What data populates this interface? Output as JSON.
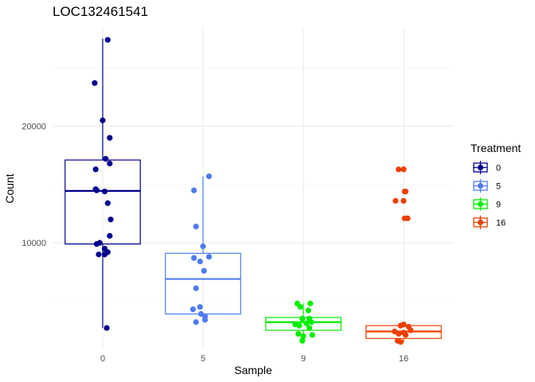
{
  "chart_data": {
    "type": "box",
    "title": "LOC132461541",
    "xlabel": "Sample",
    "ylabel": "Count",
    "categories": [
      "0",
      "5",
      "9",
      "16"
    ],
    "ylim": [
      1000,
      28500
    ],
    "yticks": [
      10000,
      20000
    ],
    "ytick_labels": [
      "10000",
      "20000"
    ],
    "grid": true,
    "legend": {
      "title": "Treatment",
      "position": "right",
      "entries": [
        "0",
        "5",
        "9",
        "16"
      ]
    },
    "colors": [
      "#00008B",
      "#4F7BEE",
      "#00EE00",
      "#EE4000"
    ],
    "series": [
      {
        "name": "0",
        "box": {
          "q1": 9900,
          "median": 14450,
          "q3": 17100,
          "whisker_low": 2700,
          "whisker_high": 27500
        },
        "points": [
          [
            0.05,
            27400
          ],
          [
            -0.08,
            23700
          ],
          [
            0.0,
            20500
          ],
          [
            0.07,
            19000
          ],
          [
            0.03,
            17200
          ],
          [
            0.07,
            16800
          ],
          [
            -0.07,
            16300
          ],
          [
            -0.06,
            14500
          ],
          [
            -0.07,
            14600
          ],
          [
            0.02,
            14400
          ],
          [
            0.05,
            13400
          ],
          [
            0.08,
            12000
          ],
          [
            0.07,
            10600
          ],
          [
            -0.06,
            9900
          ],
          [
            -0.03,
            10000
          ],
          [
            0.02,
            9500
          ],
          [
            -0.04,
            9000
          ],
          [
            0.02,
            9000
          ],
          [
            0.05,
            9200
          ],
          [
            0.04,
            2700
          ]
        ]
      },
      {
        "name": "5",
        "box": {
          "q1": 3900,
          "median": 6900,
          "q3": 9100,
          "whisker_low": 3900,
          "whisker_high": 15700
        },
        "points": [
          [
            0.06,
            15700
          ],
          [
            -0.09,
            14500
          ],
          [
            -0.07,
            11400
          ],
          [
            0.0,
            9700
          ],
          [
            -0.09,
            8700
          ],
          [
            0.06,
            8800
          ],
          [
            -0.03,
            8400
          ],
          [
            0.01,
            7600
          ],
          [
            -0.07,
            6100
          ],
          [
            -0.03,
            4500
          ],
          [
            -0.1,
            4300
          ],
          [
            -0.02,
            3900
          ],
          [
            0.02,
            3700
          ],
          [
            0.02,
            3400
          ],
          [
            -0.07,
            3200
          ]
        ]
      },
      {
        "name": "9",
        "box": {
          "q1": 2500,
          "median": 3200,
          "q3": 3600,
          "whisker_low": 1600,
          "whisker_high": 4800
        },
        "points": [
          [
            -0.06,
            4800
          ],
          [
            0.07,
            4800
          ],
          [
            -0.03,
            4500
          ],
          [
            0.05,
            4200
          ],
          [
            -0.01,
            3500
          ],
          [
            0.06,
            3500
          ],
          [
            0.08,
            3200
          ],
          [
            -0.08,
            3000
          ],
          [
            0.03,
            3100
          ],
          [
            -0.04,
            2900
          ],
          [
            -0.05,
            2200
          ],
          [
            0.09,
            2100
          ],
          [
            0.0,
            2000
          ],
          [
            -0.01,
            1600
          ],
          [
            0.06,
            2700
          ]
        ]
      },
      {
        "name": "16",
        "box": {
          "q1": 1800,
          "median": 2400,
          "q3": 2900,
          "whisker_low": 1500,
          "whisker_high": 2900
        },
        "points": [
          [
            -0.05,
            16300
          ],
          [
            0.0,
            16300
          ],
          [
            0.01,
            14400
          ],
          [
            0.02,
            14400
          ],
          [
            -0.08,
            13600
          ],
          [
            0.0,
            13600
          ],
          [
            0.01,
            12100
          ],
          [
            0.04,
            12100
          ],
          [
            0.0,
            3000
          ],
          [
            -0.03,
            2900
          ],
          [
            0.05,
            2800
          ],
          [
            0.07,
            2500
          ],
          [
            -0.09,
            2400
          ],
          [
            0.0,
            2300
          ],
          [
            -0.05,
            2200
          ],
          [
            0.02,
            2100
          ],
          [
            -0.06,
            1600
          ],
          [
            -0.03,
            1500
          ]
        ]
      }
    ]
  }
}
